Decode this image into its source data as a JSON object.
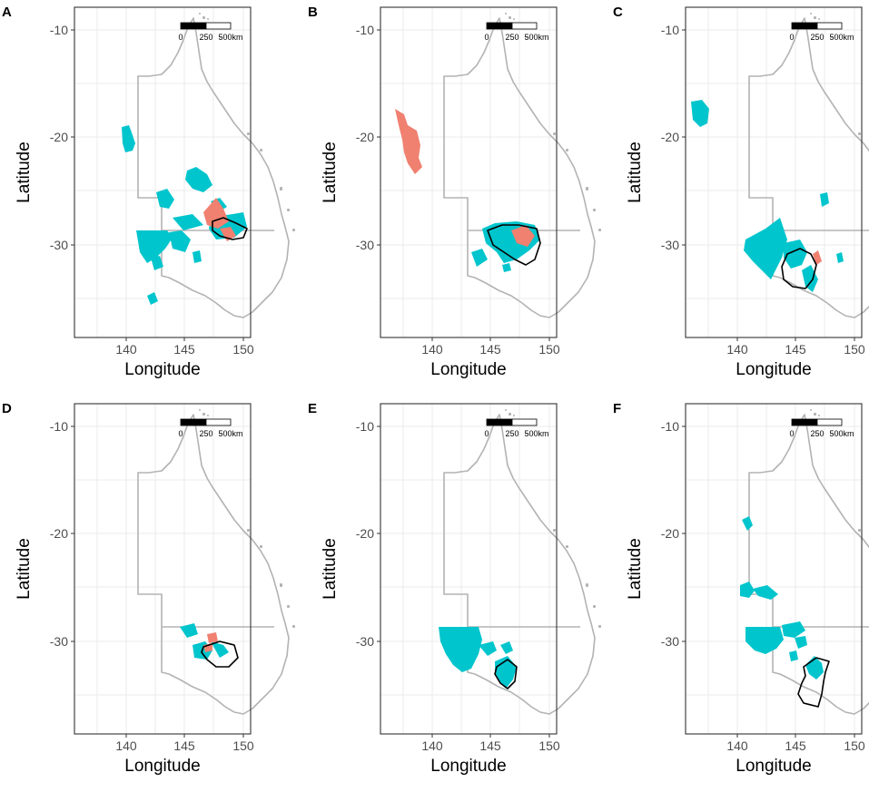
{
  "figure": {
    "x_axis_label": "Longitude",
    "y_axis_label": "Latitude",
    "x_ticks": [
      "140",
      "145",
      "150"
    ],
    "y_ticks": [
      "-10",
      "-20",
      "-30"
    ],
    "scalebar_labels": [
      "0",
      "250",
      "500km"
    ],
    "colors": {
      "region_primary": "#00c5cd",
      "region_secondary": "#f08070",
      "coastline": "#b3b3b3",
      "outline": "#000000"
    }
  },
  "panels": [
    {
      "label": "A"
    },
    {
      "label": "B"
    },
    {
      "label": "C"
    },
    {
      "label": "D"
    },
    {
      "label": "E"
    },
    {
      "label": "F"
    }
  ]
}
